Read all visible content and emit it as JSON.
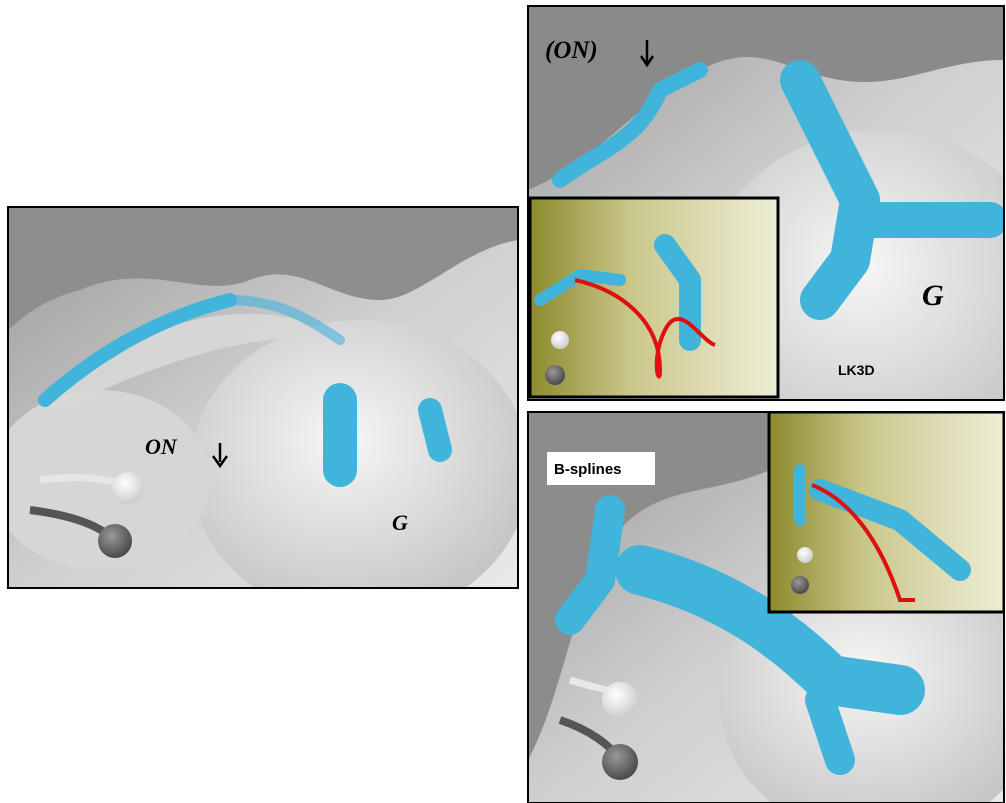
{
  "panels": [
    {
      "labels": {
        "nerve": "ON",
        "ganglion": "G"
      }
    },
    {
      "labels": {
        "nerve": "(ON)",
        "ganglion": "G",
        "method": "LK3D"
      }
    },
    {
      "labels": {
        "method": "B-splines"
      }
    }
  ]
}
